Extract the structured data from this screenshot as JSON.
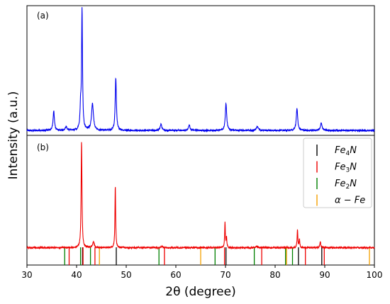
{
  "chart_data": {
    "type": "line",
    "xlabel": "2θ (degree)",
    "ylabel": "Intensity (a.u.)",
    "xlim": [
      30,
      100
    ],
    "x_ticks": [
      30,
      40,
      50,
      60,
      70,
      80,
      90,
      100
    ],
    "panels": [
      {
        "label": "(a)",
        "series_color": "#0000ee",
        "baseline": 0.04,
        "peaks": [
          {
            "x": 35.4,
            "h": 0.16,
            "w": 0.28
          },
          {
            "x": 37.9,
            "h": 0.03,
            "w": 0.35
          },
          {
            "x": 40.8,
            "h": 0.17,
            "w": 0.22
          },
          {
            "x": 41.1,
            "h": 0.98,
            "w": 0.2
          },
          {
            "x": 43.2,
            "h": 0.22,
            "w": 0.4
          },
          {
            "x": 47.9,
            "h": 0.43,
            "w": 0.25
          },
          {
            "x": 57.0,
            "h": 0.05,
            "w": 0.35
          },
          {
            "x": 62.7,
            "h": 0.05,
            "w": 0.3
          },
          {
            "x": 70.1,
            "h": 0.22,
            "w": 0.3
          },
          {
            "x": 76.4,
            "h": 0.03,
            "w": 0.4
          },
          {
            "x": 84.4,
            "h": 0.18,
            "w": 0.3
          },
          {
            "x": 89.3,
            "h": 0.06,
            "w": 0.35
          }
        ]
      },
      {
        "label": "(b)",
        "series_color": "#ee0000",
        "baseline": 0.14,
        "peaks": [
          {
            "x": 41.0,
            "h": 0.86,
            "w": 0.18
          },
          {
            "x": 43.4,
            "h": 0.05,
            "w": 0.3
          },
          {
            "x": 47.8,
            "h": 0.5,
            "w": 0.15
          },
          {
            "x": 57.2,
            "h": 0.01,
            "w": 0.3
          },
          {
            "x": 69.9,
            "h": 0.2,
            "w": 0.15
          },
          {
            "x": 70.2,
            "h": 0.08,
            "w": 0.15
          },
          {
            "x": 76.3,
            "h": 0.01,
            "w": 0.3
          },
          {
            "x": 84.5,
            "h": 0.15,
            "w": 0.15
          },
          {
            "x": 84.9,
            "h": 0.07,
            "w": 0.15
          },
          {
            "x": 89.1,
            "h": 0.05,
            "w": 0.2
          }
        ]
      }
    ],
    "reference_lines": [
      {
        "name": "Fe4N",
        "label_main": "Fe",
        "label_sub": "4",
        "label_end": "N",
        "color": "#000000",
        "positions": [
          41.2,
          48.0,
          70.1,
          84.7,
          89.4
        ]
      },
      {
        "name": "Fe3N",
        "label_main": "Fe",
        "label_sub": "3",
        "label_end": "N",
        "color": "#ee0000",
        "positions": [
          38.5,
          41.3,
          43.7,
          57.7,
          69.8,
          77.3,
          86.1,
          89.9
        ]
      },
      {
        "name": "Fe2N",
        "label_main": "Fe",
        "label_sub": "2",
        "label_end": "N",
        "color": "#008000",
        "positions": [
          37.6,
          40.8,
          42.8,
          56.6,
          67.9,
          75.8,
          82.1,
          83.5
        ]
      },
      {
        "name": "α-Fe",
        "label_main": "α − Fe",
        "label_sub": "",
        "label_end": "",
        "color": "#f5a000",
        "positions": [
          44.6,
          65.0,
          82.3,
          99.0
        ]
      }
    ],
    "legend_position": "top-right of panel (b)",
    "grid": false
  }
}
